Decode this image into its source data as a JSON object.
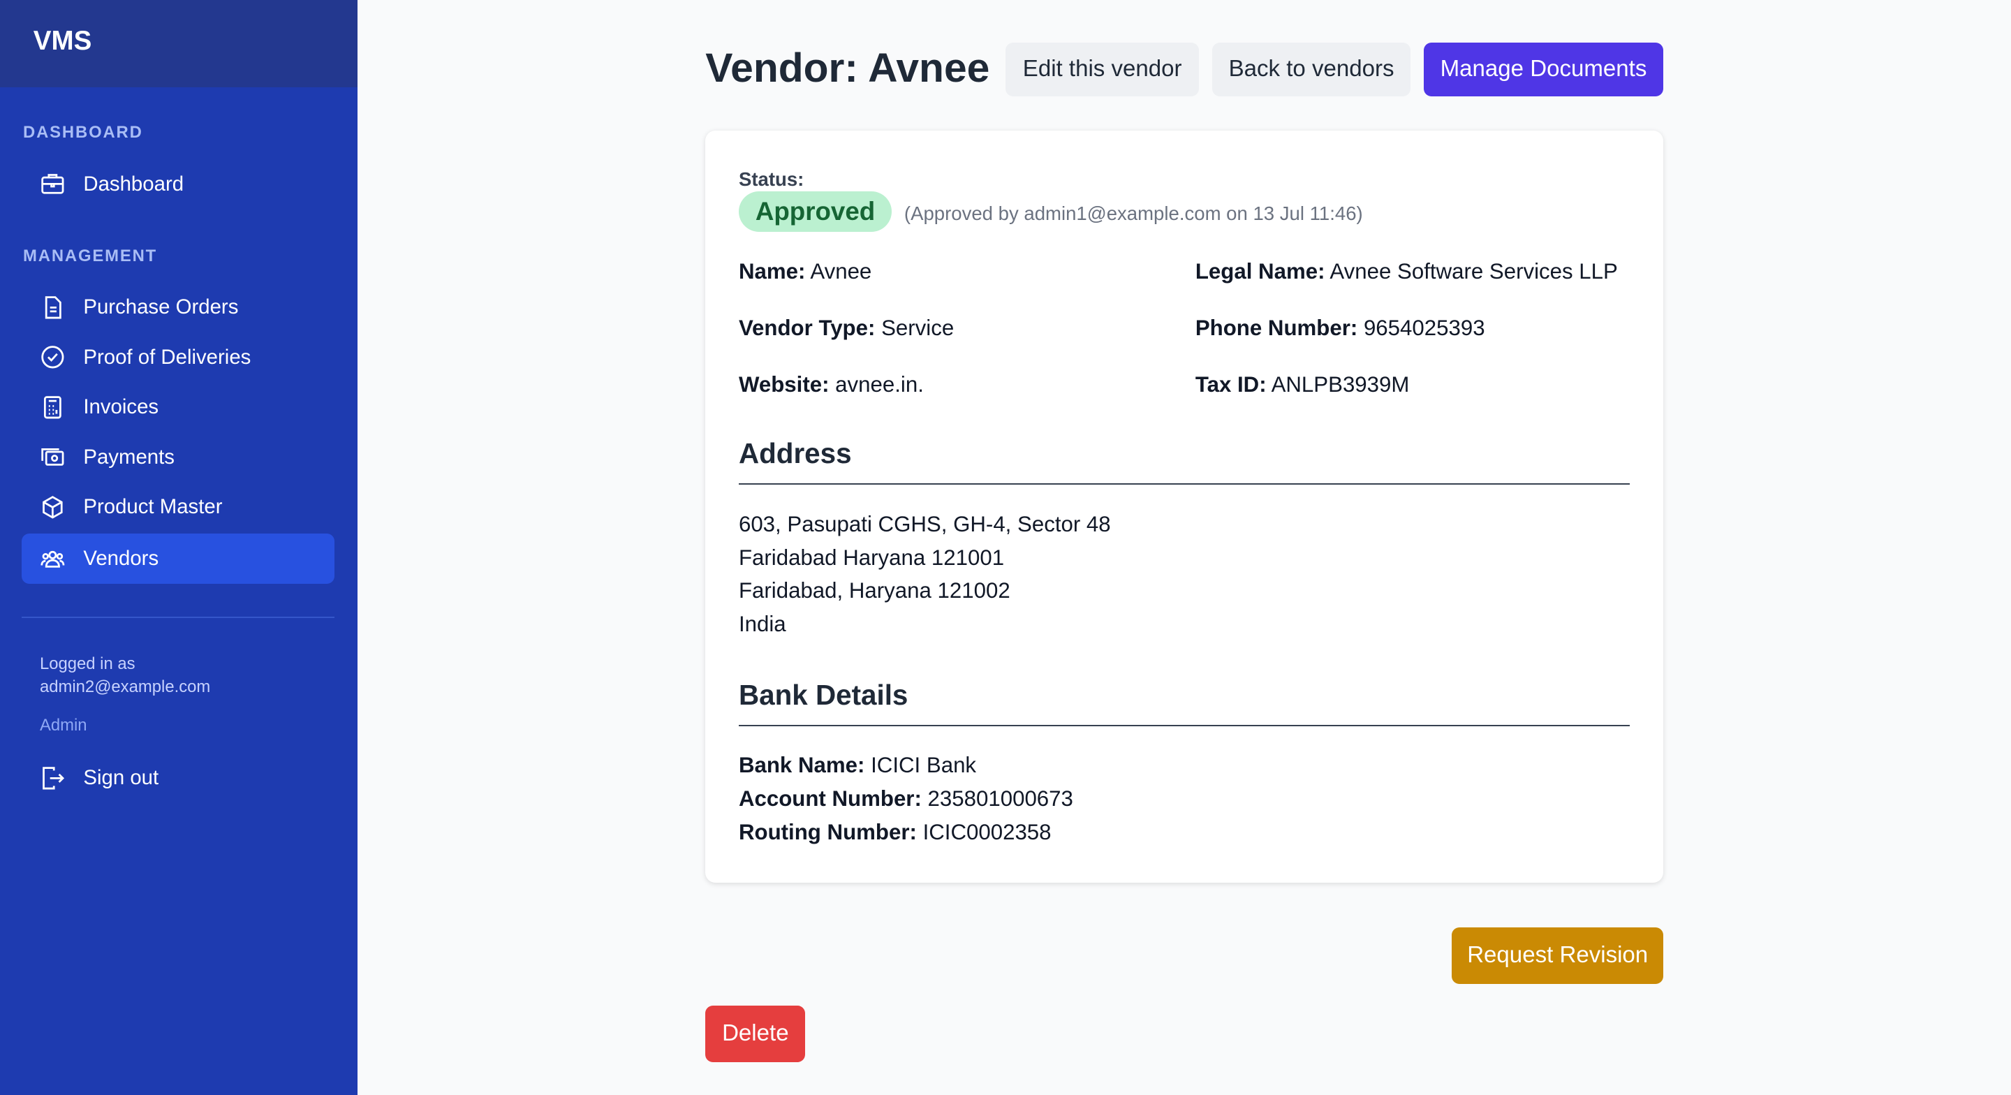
{
  "sidebar": {
    "brand": "VMS",
    "sections": [
      {
        "heading": "DASHBOARD",
        "items": [
          "Dashboard"
        ]
      },
      {
        "heading": "MANAGEMENT",
        "items": [
          "Purchase Orders",
          "Proof of Deliveries",
          "Invoices",
          "Payments",
          "Product Master",
          "Vendors"
        ]
      }
    ],
    "user": {
      "logged_in_as": "Logged in as",
      "email": "admin2@example.com",
      "role": "Admin"
    },
    "sign_out": "Sign out"
  },
  "header": {
    "title": "Vendor: Avnee",
    "buttons": [
      "Edit this vendor",
      "Back to vendors",
      "Manage Documents"
    ]
  },
  "status": {
    "label": "Status:",
    "badge": "Approved",
    "note": "(Approved by admin1@example.com on 13 Jul 11:46)"
  },
  "fields": [
    {
      "label": "Name:",
      "value": "Avnee"
    },
    {
      "label": "Legal Name:",
      "value": "Avnee Software Services LLP"
    },
    {
      "label": "Vendor Type:",
      "value": "Service"
    },
    {
      "label": "Phone Number:",
      "value": "9654025393"
    },
    {
      "label": "Website:",
      "value": "avnee.in."
    },
    {
      "label": "Tax ID:",
      "value": "ANLPB3939M"
    }
  ],
  "address": {
    "heading": "Address",
    "lines": [
      "603, Pasupati CGHS, GH-4, Sector 48",
      "Faridabad Haryana 121001",
      "Faridabad, Haryana 121002",
      "India"
    ]
  },
  "bank": {
    "heading": "Bank Details",
    "rows": [
      {
        "label": "Bank Name:",
        "value": "ICICI Bank"
      },
      {
        "label": "Account Number:",
        "value": "235801000673"
      },
      {
        "label": "Routing Number:",
        "value": "ICIC0002358"
      }
    ]
  },
  "actions": {
    "request_revision": "Request Revision",
    "delete": "Delete"
  }
}
